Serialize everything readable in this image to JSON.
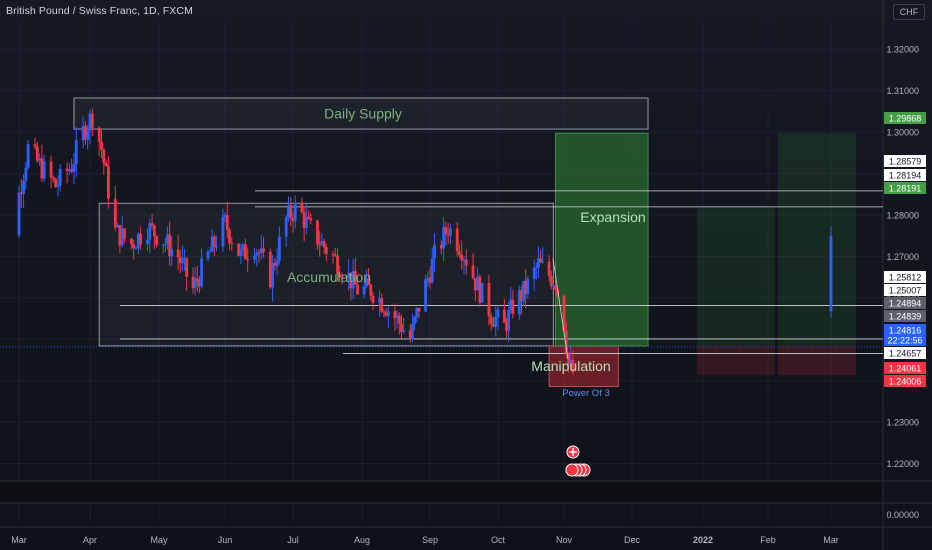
{
  "title": "British Pound / Swiss Franc, 1D, FXCM",
  "currency": "CHF",
  "colors": {
    "up": "#2962ff",
    "down": "#f23645",
    "bg": "#131722",
    "grid": "#1c2030",
    "text": "#b2b5be",
    "green_box": "#2e7d32",
    "red_box": "#b22833",
    "grey_box": "#787b86"
  },
  "chart_data": {
    "type": "candlestick",
    "ylim": [
      1.2158,
      1.3275
    ],
    "y_ticks": [
      "1.32000",
      "1.31000",
      "1.30000",
      "1.29000",
      "1.28000",
      "1.27000",
      "1.26000",
      "1.25000",
      "1.24000",
      "1.23000",
      "1.22000"
    ],
    "bottom_tick": "0.00000",
    "x_ticks": [
      "Mar",
      "Apr",
      "May",
      "Jun",
      "Jul",
      "Aug",
      "Sep",
      "Oct",
      "Nov",
      "Dec",
      "2022",
      "Feb",
      "Mar"
    ],
    "annotations": [
      {
        "label": "Daily Supply",
        "top": 1.3082,
        "bottom": 1.3007,
        "start": "Mar 25",
        "end": "Dec 8",
        "kind": "grey"
      },
      {
        "label": "Accumulation",
        "top": 1.2828,
        "bottom": 1.2484,
        "start": "Apr 5",
        "end": "Oct 27",
        "kind": "grey"
      },
      {
        "label": "Manipulation",
        "top": 1.2484,
        "bottom": 1.2386,
        "start": "Oct 25",
        "end": "Nov 25",
        "kind": "red"
      },
      {
        "label": "Expansion",
        "top": 1.2997,
        "bottom": 1.2484,
        "start": "Oct 28",
        "end": "Dec 8",
        "kind": "green"
      }
    ],
    "note": "Power Of 3",
    "levels": [
      1.28579,
      1.28194,
      1.25812,
      1.25007,
      1.24657
    ],
    "price_labels": [
      {
        "value": "1.29868",
        "kind": "green"
      },
      {
        "value": "1.28579",
        "kind": "white"
      },
      {
        "value": "1.28194",
        "kind": "white"
      },
      {
        "value": "1.28191",
        "kind": "green"
      },
      {
        "value": "1.25812",
        "kind": "white"
      },
      {
        "value": "1.25007",
        "kind": "white"
      },
      {
        "value": "1.24894",
        "kind": "grey"
      },
      {
        "value": "1.24839",
        "kind": "grey"
      },
      {
        "value": "1.24816",
        "kind": "blue"
      },
      {
        "value": "22:22:56",
        "kind": "blue"
      },
      {
        "value": "1.24657",
        "kind": "white"
      },
      {
        "value": "1.24061",
        "kind": "red"
      },
      {
        "value": "1.24006",
        "kind": "red"
      }
    ],
    "last_price": 1.24816
  }
}
